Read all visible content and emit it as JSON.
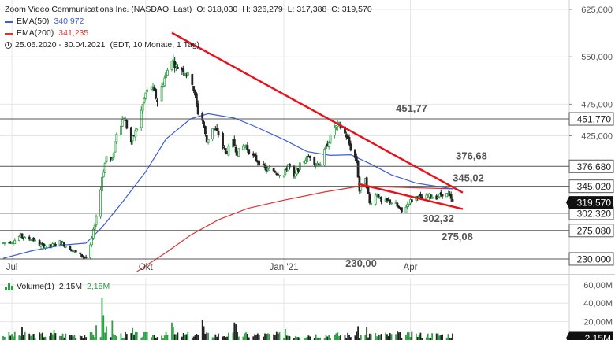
{
  "header": {
    "instrument": "Zoom Video Communications Inc. (NASDAQ, Last)",
    "open": "O: 318,030",
    "high": "H: 326,279",
    "low": "L: 317,388",
    "close": "C: 319,570",
    "ema50_label": "EMA(50)",
    "ema50_value": "340,972",
    "ema200_label": "EMA(200)",
    "ema200_value": "341,235",
    "range": "25.06.2020 - 30.04.2021",
    "range_note": "(EDT, 10 Monate, 1 Tag)"
  },
  "volume_header": {
    "label": "Volume(1)",
    "value1": "2,15M",
    "value2": "2,15M"
  },
  "colors": {
    "up": "#2e9e44",
    "down": "#222222",
    "ema50": "#3b5bdb",
    "ema200": "#e03131",
    "trendline": "#e8101a",
    "level": "#555555",
    "grid": "#e6e6e6",
    "badge_dark": "#111111"
  },
  "chart_data": {
    "type": "candlestick",
    "price_axis": {
      "min": 210,
      "max": 640,
      "ticks": [
        {
          "value": 625,
          "label": "625,000"
        },
        {
          "value": 550,
          "label": "550,000"
        },
        {
          "value": 475,
          "label": "475,000"
        },
        {
          "value": 425,
          "label": "425,000"
        }
      ]
    },
    "x_axis": {
      "start": "2020-06-25",
      "end": "2021-04-30",
      "ticks": [
        {
          "date": "2020-07-01",
          "label": "Jul"
        },
        {
          "date": "2020-10-01",
          "label": "Okt"
        },
        {
          "date": "2021-01-04",
          "label": "Jan '21"
        },
        {
          "date": "2021-04-01",
          "label": "Apr"
        }
      ]
    },
    "levels": [
      {
        "value": 451.77,
        "label": "451,77",
        "badge": "451,770"
      },
      {
        "value": 376.68,
        "label": "376,68",
        "badge": "376,680"
      },
      {
        "value": 345.02,
        "label": "345,02",
        "badge": "345,020"
      },
      {
        "value": 302.32,
        "label": "302,32",
        "badge": "302,320"
      },
      {
        "value": 275.08,
        "label": "275,08",
        "badge": "275,080"
      },
      {
        "value": 230.0,
        "label": "230,00",
        "badge": "230,000"
      }
    ],
    "last_price": {
      "value": 319.57,
      "label": "319,570"
    },
    "trendlines": [
      {
        "from": {
          "date": "2020-10-19",
          "value": 588
        },
        "to": {
          "date": "2021-05-07",
          "value": 335
        }
      },
      {
        "from": {
          "date": "2021-02-24",
          "value": 349
        },
        "to": {
          "date": "2021-05-07",
          "value": 309
        }
      }
    ],
    "price_path": [
      [
        "2020-06-25",
        255
      ],
      [
        "2020-07-02",
        258
      ],
      [
        "2020-07-07",
        267
      ],
      [
        "2020-07-10",
        262
      ],
      [
        "2020-07-15",
        262
      ],
      [
        "2020-07-20",
        252
      ],
      [
        "2020-07-27",
        250
      ],
      [
        "2020-08-03",
        257
      ],
      [
        "2020-08-10",
        246
      ],
      [
        "2020-08-17",
        236
      ],
      [
        "2020-08-21",
        232
      ],
      [
        "2020-08-24",
        250
      ],
      [
        "2020-08-28",
        298
      ],
      [
        "2020-08-31",
        340
      ],
      [
        "2020-09-01",
        360
      ],
      [
        "2020-09-04",
        392
      ],
      [
        "2020-09-08",
        385
      ],
      [
        "2020-09-11",
        430
      ],
      [
        "2020-09-16",
        455
      ],
      [
        "2020-09-21",
        415
      ],
      [
        "2020-09-25",
        437
      ],
      [
        "2020-10-01",
        492
      ],
      [
        "2020-10-05",
        504
      ],
      [
        "2020-10-09",
        480
      ],
      [
        "2020-10-13",
        510
      ],
      [
        "2020-10-19",
        548
      ],
      [
        "2020-10-22",
        534
      ],
      [
        "2020-10-27",
        530
      ],
      [
        "2020-11-02",
        510
      ],
      [
        "2020-11-06",
        462
      ],
      [
        "2020-11-09",
        450
      ],
      [
        "2020-11-12",
        415
      ],
      [
        "2020-11-16",
        438
      ],
      [
        "2020-11-20",
        428
      ],
      [
        "2020-11-25",
        397
      ],
      [
        "2020-11-30",
        415
      ],
      [
        "2020-12-03",
        398
      ],
      [
        "2020-12-08",
        410
      ],
      [
        "2020-12-14",
        392
      ],
      [
        "2020-12-18",
        383
      ],
      [
        "2020-12-23",
        371
      ],
      [
        "2020-12-28",
        370
      ],
      [
        "2021-01-04",
        362
      ],
      [
        "2021-01-07",
        380
      ],
      [
        "2021-01-11",
        358
      ],
      [
        "2021-01-15",
        378
      ],
      [
        "2021-01-19",
        388
      ],
      [
        "2021-01-22",
        393
      ],
      [
        "2021-01-26",
        381
      ],
      [
        "2021-01-29",
        382
      ],
      [
        "2021-02-03",
        412
      ],
      [
        "2021-02-08",
        438
      ],
      [
        "2021-02-11",
        442
      ],
      [
        "2021-02-16",
        425
      ],
      [
        "2021-02-19",
        405
      ],
      [
        "2021-02-23",
        385
      ],
      [
        "2021-02-25",
        338
      ],
      [
        "2021-03-01",
        360
      ],
      [
        "2021-03-04",
        318
      ],
      [
        "2021-03-09",
        334
      ],
      [
        "2021-03-12",
        320
      ],
      [
        "2021-03-17",
        322
      ],
      [
        "2021-03-22",
        316
      ],
      [
        "2021-03-26",
        304
      ],
      [
        "2021-03-31",
        320
      ],
      [
        "2021-04-06",
        330
      ],
      [
        "2021-04-09",
        325
      ],
      [
        "2021-04-14",
        330
      ],
      [
        "2021-04-19",
        328
      ],
      [
        "2021-04-23",
        333
      ],
      [
        "2021-04-27",
        332
      ],
      [
        "2021-04-30",
        320
      ]
    ],
    "ema50_path": [
      [
        "2020-06-25",
        231
      ],
      [
        "2020-07-15",
        243
      ],
      [
        "2020-08-05",
        252
      ],
      [
        "2020-08-21",
        255
      ],
      [
        "2020-09-01",
        280
      ],
      [
        "2020-09-15",
        320
      ],
      [
        "2020-10-01",
        368
      ],
      [
        "2020-10-15",
        420
      ],
      [
        "2020-11-01",
        452
      ],
      [
        "2020-11-13",
        460
      ],
      [
        "2020-12-01",
        453
      ],
      [
        "2020-12-15",
        440
      ],
      [
        "2021-01-04",
        419
      ],
      [
        "2021-01-20",
        400
      ],
      [
        "2021-02-05",
        394
      ],
      [
        "2021-02-19",
        395
      ],
      [
        "2021-03-05",
        380
      ],
      [
        "2021-03-19",
        363
      ],
      [
        "2021-04-05",
        350
      ],
      [
        "2021-04-30",
        341
      ]
    ],
    "ema200_path": [
      [
        "2020-09-25",
        210
      ],
      [
        "2020-10-15",
        240
      ],
      [
        "2020-11-01",
        268
      ],
      [
        "2020-11-20",
        292
      ],
      [
        "2020-12-10",
        310
      ],
      [
        "2021-01-04",
        323
      ],
      [
        "2021-02-01",
        336
      ],
      [
        "2021-02-22",
        344
      ],
      [
        "2021-03-15",
        344
      ],
      [
        "2021-04-30",
        341
      ]
    ],
    "volume_axis": {
      "min": 0,
      "max": 65,
      "ticks": [
        {
          "value": 60,
          "label": "60,00M"
        },
        {
          "value": 40,
          "label": "40,00M"
        },
        {
          "value": 20,
          "label": "20,00M"
        }
      ]
    },
    "volume_last": {
      "value": 2.15,
      "label": "2,15M"
    },
    "volume_spikes": [
      [
        "2020-07-08",
        14
      ],
      [
        "2020-07-30",
        11
      ],
      [
        "2020-08-28",
        16
      ],
      [
        "2020-09-01",
        46
      ],
      [
        "2020-09-02",
        27
      ],
      [
        "2020-09-04",
        15
      ],
      [
        "2020-09-08",
        21
      ],
      [
        "2020-09-22",
        13
      ],
      [
        "2020-10-19",
        19
      ],
      [
        "2020-10-20",
        14
      ],
      [
        "2020-11-09",
        22
      ],
      [
        "2020-11-10",
        15
      ],
      [
        "2020-12-01",
        19
      ],
      [
        "2020-12-02",
        17
      ],
      [
        "2021-01-05",
        12
      ],
      [
        "2021-02-24",
        15
      ],
      [
        "2021-03-02",
        14
      ],
      [
        "2021-03-23",
        10
      ]
    ]
  }
}
